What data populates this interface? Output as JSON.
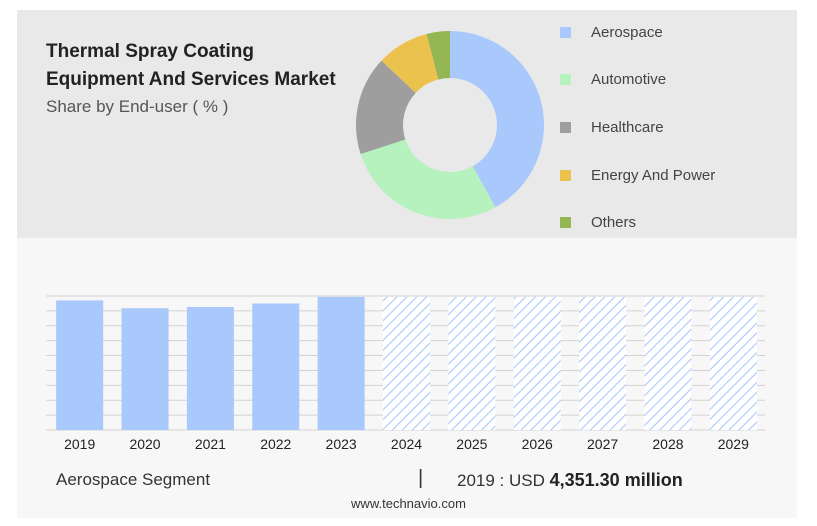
{
  "title_line1": "Thermal Spray Coating",
  "title_line2": "Equipment And Services Market",
  "subtitle": "Share by End-user ( % )",
  "footer": {
    "segment": "Aerospace Segment",
    "separator": "|",
    "year_label": "2019 : USD",
    "value_label": "4,351.30 million"
  },
  "website": "www.technavio.com",
  "chart_data": [
    {
      "type": "pie",
      "variant": "donut",
      "title": "",
      "categories": [
        "Aerospace",
        "Automotive",
        "Healthcare",
        "Energy And Power",
        "Others"
      ],
      "values": [
        42,
        28,
        17,
        9,
        4
      ],
      "colors": [
        "#a9c8fb",
        "#b5f2bd",
        "#9e9e9e",
        "#ecc24f",
        "#94b653"
      ],
      "legend": "right"
    },
    {
      "type": "bar",
      "title": "Aerospace Segment",
      "categories": [
        "2019",
        "2020",
        "2021",
        "2022",
        "2023",
        "2024",
        "2025",
        "2026",
        "2027",
        "2028",
        "2029"
      ],
      "values": [
        4351.3,
        4090,
        4130,
        4250,
        4470,
        4470,
        4470,
        4470,
        4470,
        4470,
        4470
      ],
      "forecast_from": "2024",
      "ylim": [
        0,
        4500
      ],
      "grid": true,
      "colors": {
        "actual": "#a9c8fb",
        "forecast_hatch": "#a9c8fb"
      }
    }
  ]
}
